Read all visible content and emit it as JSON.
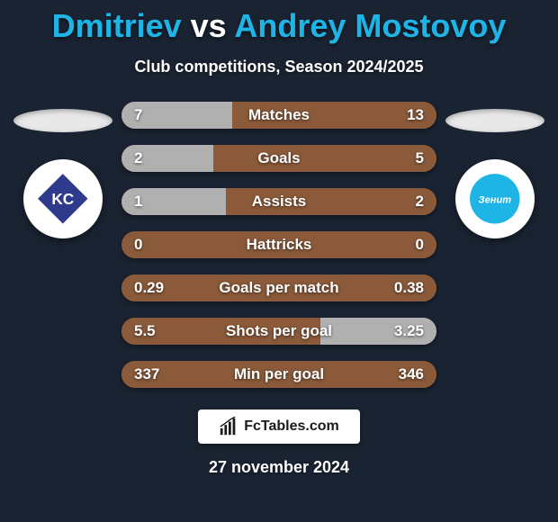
{
  "background_color": "#1a2332",
  "title": {
    "player1": "Dmitriev",
    "vs": "vs",
    "player2": "Andrey Mostovoy",
    "color_player1": "#1fb4e6",
    "color_vs": "#ffffff",
    "color_player2": "#1fb4e6",
    "fontsize": 36
  },
  "subtitle": {
    "text": "Club competitions, Season 2024/2025",
    "color": "#ffffff",
    "fontsize": 18
  },
  "left_team": {
    "ellipse_color": "#e8e8e8",
    "logo_bg": "#ffffff",
    "logo_shape_color": "#2e3a8c"
  },
  "right_team": {
    "ellipse_color": "#e8e8e8",
    "logo_bg": "#ffffff",
    "logo_shape_color": "#1fb4e6"
  },
  "bar_style": {
    "height": 30,
    "radius": 16,
    "track_color": "#8a5a3a",
    "label_fontsize": 17,
    "value_fontsize": 17,
    "label_color": "#ffffff"
  },
  "stats": [
    {
      "label": "Matches",
      "left_val": "7",
      "right_val": "13",
      "left_pct": 35,
      "right_pct": 65,
      "left_color": "#b0b0b0",
      "right_color": "#8a5a3a"
    },
    {
      "label": "Goals",
      "left_val": "2",
      "right_val": "5",
      "left_pct": 29,
      "right_pct": 71,
      "left_color": "#b0b0b0",
      "right_color": "#8a5a3a"
    },
    {
      "label": "Assists",
      "left_val": "1",
      "right_val": "2",
      "left_pct": 33,
      "right_pct": 67,
      "left_color": "#b0b0b0",
      "right_color": "#8a5a3a"
    },
    {
      "label": "Hattricks",
      "left_val": "0",
      "right_val": "0",
      "left_pct": 0,
      "right_pct": 0,
      "left_color": "#b0b0b0",
      "right_color": "#8a5a3a"
    },
    {
      "label": "Goals per match",
      "left_val": "0.29",
      "right_val": "0.38",
      "left_pct": 43,
      "right_pct": 57,
      "left_color": "#8a5a3a",
      "right_color": "#8a5a3a"
    },
    {
      "label": "Shots per goal",
      "left_val": "5.5",
      "right_val": "3.25",
      "left_pct": 63,
      "right_pct": 37,
      "left_color": "#8a5a3a",
      "right_color": "#b0b0b0"
    },
    {
      "label": "Min per goal",
      "left_val": "337",
      "right_val": "346",
      "left_pct": 49,
      "right_pct": 51,
      "left_color": "#8a5a3a",
      "right_color": "#8a5a3a"
    }
  ],
  "footer": {
    "brand": "FcTables.com",
    "brand_color": "#1a1a1a",
    "badge_bg": "#ffffff"
  },
  "date": {
    "text": "27 november 2024",
    "color": "#ffffff",
    "fontsize": 18
  }
}
